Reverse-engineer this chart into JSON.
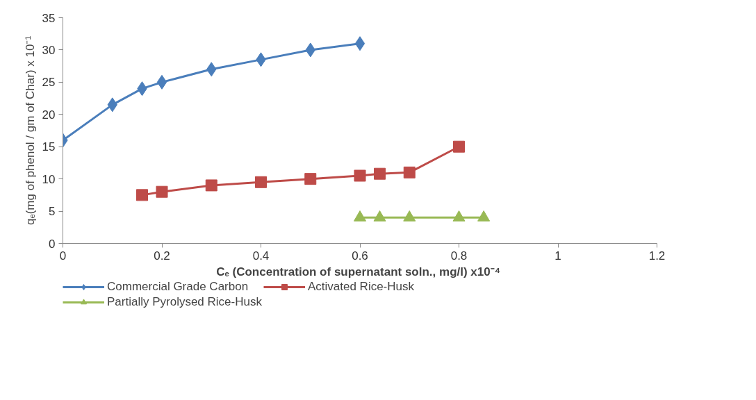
{
  "chart_data": {
    "type": "line",
    "xlabel": "Cₑ (Concentration of supernatant soln.,  mg/l) x10⁻⁴",
    "ylabel": "qₑ(mg of phenol / gm of Char) x 10⁻¹",
    "xlim": [
      0,
      1.2
    ],
    "xticks": [
      0,
      0.2,
      0.4,
      0.6,
      0.8,
      1,
      1.2
    ],
    "ylim": [
      0,
      35
    ],
    "yticks": [
      0,
      5,
      10,
      15,
      20,
      25,
      30,
      35
    ],
    "grid": false,
    "legend": "bottom",
    "series": [
      {
        "name": "Commercial Grade Carbon",
        "color": "#4a7ebb",
        "marker": "diamond",
        "x": [
          0,
          0.1,
          0.16,
          0.2,
          0.3,
          0.4,
          0.5,
          0.6
        ],
        "values": [
          16,
          21.5,
          24,
          25,
          27,
          28.5,
          30,
          31
        ]
      },
      {
        "name": "Activated Rice-Husk",
        "color": "#be4b48",
        "marker": "square",
        "x": [
          0.16,
          0.2,
          0.3,
          0.4,
          0.5,
          0.6,
          0.64,
          0.7,
          0.8
        ],
        "values": [
          7.5,
          8,
          9,
          9.5,
          10,
          10.5,
          10.8,
          11,
          15
        ]
      },
      {
        "name": "Partially Pyrolysed Rice-Husk",
        "color": "#98b954",
        "marker": "triangle",
        "x": [
          0.6,
          0.64,
          0.7,
          0.8,
          0.85
        ],
        "values": [
          4,
          4,
          4,
          4,
          4
        ]
      }
    ]
  }
}
